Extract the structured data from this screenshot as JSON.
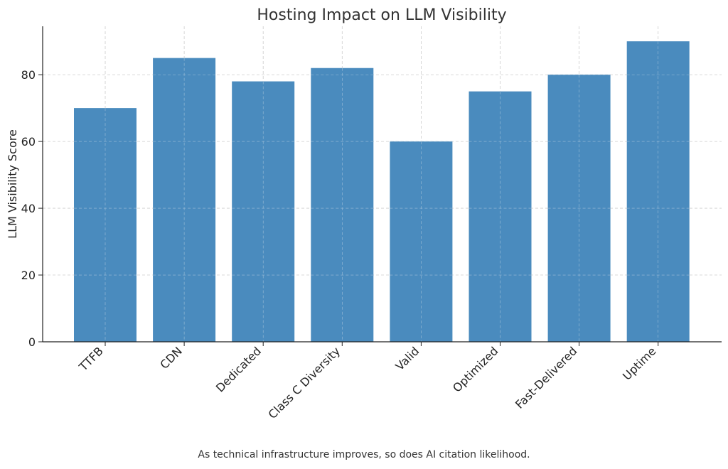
{
  "chart_data": {
    "type": "bar",
    "title": "Hosting Impact on LLM Visibility",
    "xlabel": "",
    "ylabel": "LLM Visibility Score",
    "categories": [
      "TTFB",
      "CDN",
      "Dedicated",
      "Class C Diversity",
      "Valid",
      "Optimized",
      "Fast-Delivered",
      "Uptime"
    ],
    "values": [
      70,
      85,
      78,
      82,
      60,
      75,
      80,
      90
    ],
    "ylim": [
      0,
      94.5
    ],
    "yticks": [
      0,
      20,
      40,
      60,
      80
    ],
    "grid": true,
    "bar_color": "#4a8bbe",
    "caption": "As technical infrastructure improves, so does AI citation likelihood."
  }
}
